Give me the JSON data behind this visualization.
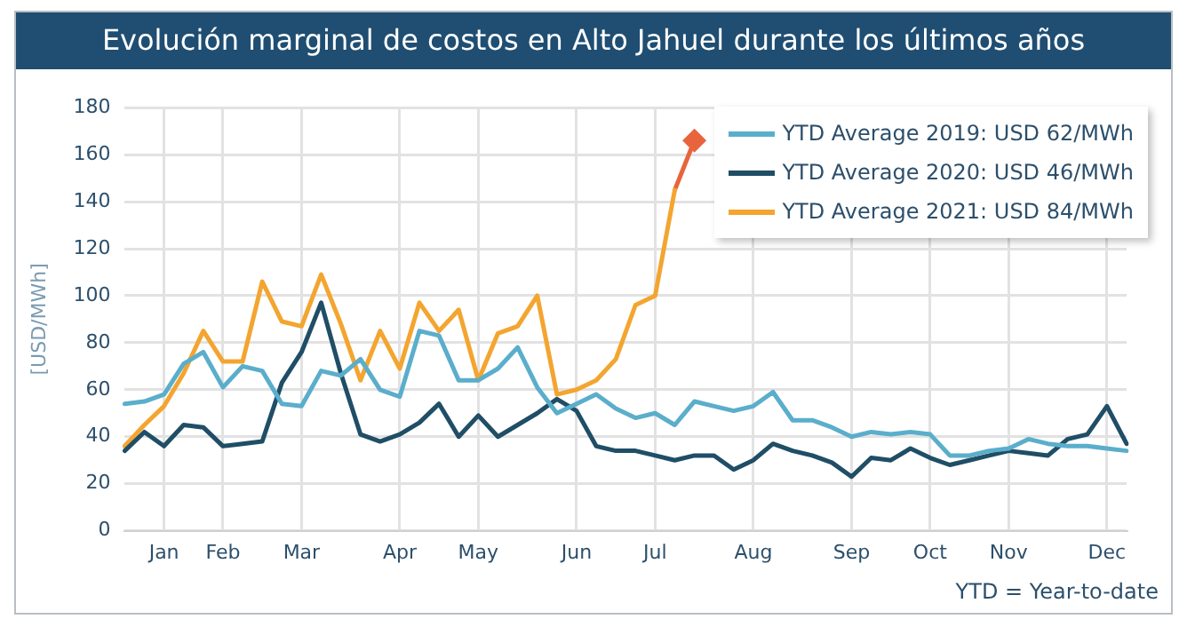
{
  "chart_data": {
    "type": "line",
    "title": "Evolución marginal de costos en Alto Jahuel durante los últimos años",
    "ylabel": "[USD/MWh]",
    "categories": [
      null,
      null,
      "Jan",
      null,
      null,
      "Feb",
      null,
      null,
      null,
      "Mar",
      null,
      null,
      null,
      null,
      "Apr",
      null,
      null,
      null,
      "May",
      null,
      null,
      null,
      null,
      "Jun",
      null,
      null,
      null,
      "Jul",
      null,
      null,
      null,
      null,
      "Aug",
      null,
      null,
      null,
      null,
      "Sep",
      null,
      null,
      null,
      "Oct",
      null,
      null,
      null,
      "Nov",
      null,
      null,
      null,
      null,
      "Dec",
      null
    ],
    "series": [
      {
        "name": "YTD Average 2019: USD 62/MWh",
        "color": "#5aaecb",
        "values": [
          54,
          55,
          58,
          71,
          76,
          61,
          70,
          68,
          54,
          53,
          68,
          66,
          73,
          60,
          57,
          85,
          83,
          64,
          64,
          69,
          78,
          61,
          50,
          54,
          58,
          52,
          48,
          50,
          45,
          55,
          53,
          51,
          53,
          59,
          47,
          47,
          44,
          40,
          42,
          41,
          42,
          41,
          32,
          32,
          34,
          35,
          39,
          37,
          36,
          36,
          35,
          34
        ]
      },
      {
        "name": "YTD Average 2020: USD 46/MWh",
        "color": "#1f4e66",
        "values": [
          34,
          42,
          36,
          45,
          44,
          36,
          37,
          38,
          63,
          76,
          97,
          67,
          41,
          38,
          41,
          46,
          54,
          40,
          49,
          40,
          45,
          50,
          56,
          51,
          36,
          34,
          34,
          32,
          30,
          32,
          32,
          26,
          30,
          37,
          34,
          32,
          29,
          23,
          31,
          30,
          35,
          31,
          28,
          30,
          32,
          34,
          33,
          32,
          39,
          41,
          53,
          37
        ]
      },
      {
        "name": "YTD Average 2021: USD 84/MWh",
        "color": "#f3a530",
        "values": [
          36,
          45,
          53,
          67,
          85,
          72,
          72,
          106,
          89,
          87,
          109,
          88,
          64,
          85,
          69,
          97,
          85,
          94,
          64,
          84,
          87,
          100,
          58,
          60,
          64,
          73,
          96,
          100,
          145,
          null,
          null,
          null,
          null,
          null,
          null,
          null,
          null,
          null,
          null,
          null,
          null,
          null,
          null,
          null,
          null,
          null,
          null,
          null,
          null,
          null,
          null,
          null
        ]
      },
      {
        "color": "#e8643c",
        "marker": "diamond",
        "values": [
          null,
          null,
          null,
          null,
          null,
          null,
          null,
          null,
          null,
          null,
          null,
          null,
          null,
          null,
          null,
          null,
          null,
          null,
          null,
          null,
          null,
          null,
          null,
          null,
          null,
          null,
          null,
          null,
          145,
          166,
          null,
          null,
          null,
          null,
          null,
          null,
          null,
          null,
          null,
          null,
          null,
          null,
          null,
          null,
          null,
          null,
          null,
          null,
          null,
          null,
          null,
          null
        ]
      }
    ],
    "ylim": [
      0,
      180
    ],
    "yticks": [
      0,
      20,
      40,
      60,
      80,
      100,
      120,
      140,
      160,
      180
    ],
    "grid": true,
    "legend": "top right",
    "marker": "none",
    "annotations": [
      "YTD = Year-to-date"
    ]
  }
}
